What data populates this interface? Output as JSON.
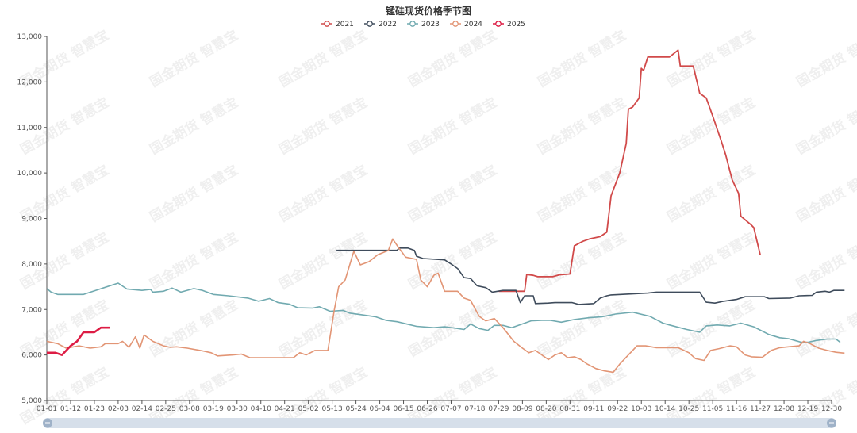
{
  "chart_data": {
    "type": "line",
    "title": "锰硅现货价格季节图",
    "watermark": "国金期货 智慧宝",
    "ylim": [
      5000,
      13000
    ],
    "yticks": [
      "5,000",
      "6,000",
      "7,000",
      "8,000",
      "9,000",
      "10,000",
      "11,000",
      "12,000",
      "13,000"
    ],
    "ytick_values": [
      5000,
      6000,
      7000,
      8000,
      9000,
      10000,
      11000,
      12000,
      13000
    ],
    "xticks": [
      "01-01",
      "01-12",
      "01-23",
      "02-03",
      "02-14",
      "02-25",
      "03-08",
      "03-19",
      "03-30",
      "04-10",
      "04-21",
      "05-02",
      "05-13",
      "05-24",
      "06-04",
      "06-15",
      "06-26",
      "07-07",
      "07-18",
      "07-29",
      "08-09",
      "08-20",
      "08-31",
      "09-11",
      "09-22",
      "10-03",
      "10-14",
      "10-25",
      "11-05",
      "11-16",
      "11-27",
      "12-08",
      "12-19",
      "12-30"
    ],
    "x_unit": "day_of_year",
    "grid": false,
    "legend_position": "top-center",
    "series": [
      {
        "name": "2021",
        "color": "#d14a4a",
        "width": 1.8,
        "points": [
          [
            210,
            7400
          ],
          [
            222,
            7400
          ],
          [
            223,
            7770
          ],
          [
            226,
            7750
          ],
          [
            228,
            7720
          ],
          [
            235,
            7720
          ],
          [
            238,
            7760
          ],
          [
            243,
            7780
          ],
          [
            245,
            8400
          ],
          [
            249,
            8500
          ],
          [
            252,
            8550
          ],
          [
            257,
            8600
          ],
          [
            260,
            8700
          ],
          [
            262,
            9500
          ],
          [
            266,
            10000
          ],
          [
            269,
            10650
          ],
          [
            270,
            11400
          ],
          [
            272,
            11450
          ],
          [
            275,
            11650
          ],
          [
            276,
            12300
          ],
          [
            277,
            12250
          ],
          [
            279,
            12550
          ],
          [
            281,
            12550
          ],
          [
            289,
            12550
          ],
          [
            293,
            12700
          ],
          [
            294,
            12350
          ],
          [
            300,
            12350
          ],
          [
            301,
            12150
          ],
          [
            303,
            11750
          ],
          [
            306,
            11650
          ],
          [
            309,
            11250
          ],
          [
            313,
            10700
          ],
          [
            315,
            10400
          ],
          [
            318,
            9850
          ],
          [
            321,
            9550
          ],
          [
            322,
            9050
          ],
          [
            327,
            8850
          ],
          [
            328,
            8800
          ],
          [
            331,
            8200
          ]
        ]
      },
      {
        "name": "2022",
        "color": "#3f4c5c",
        "width": 1.6,
        "points": [
          [
            135,
            8300
          ],
          [
            163,
            8300
          ],
          [
            164,
            8350
          ],
          [
            168,
            8350
          ],
          [
            171,
            8300
          ],
          [
            172,
            8170
          ],
          [
            175,
            8120
          ],
          [
            185,
            8090
          ],
          [
            188,
            8000
          ],
          [
            191,
            7900
          ],
          [
            194,
            7700
          ],
          [
            197,
            7680
          ],
          [
            200,
            7520
          ],
          [
            204,
            7480
          ],
          [
            207,
            7380
          ],
          [
            212,
            7420
          ],
          [
            218,
            7420
          ],
          [
            220,
            7150
          ],
          [
            222,
            7300
          ],
          [
            226,
            7300
          ],
          [
            227,
            7130
          ],
          [
            233,
            7140
          ],
          [
            236,
            7150
          ],
          [
            244,
            7150
          ],
          [
            247,
            7110
          ],
          [
            254,
            7130
          ],
          [
            257,
            7250
          ],
          [
            260,
            7300
          ],
          [
            262,
            7320
          ],
          [
            279,
            7360
          ],
          [
            283,
            7380
          ],
          [
            303,
            7380
          ],
          [
            306,
            7160
          ],
          [
            310,
            7140
          ],
          [
            314,
            7180
          ],
          [
            320,
            7220
          ],
          [
            324,
            7280
          ],
          [
            333,
            7280
          ],
          [
            335,
            7240
          ],
          [
            345,
            7250
          ],
          [
            349,
            7300
          ],
          [
            355,
            7310
          ],
          [
            357,
            7380
          ],
          [
            361,
            7400
          ],
          [
            363,
            7380
          ],
          [
            365,
            7420
          ],
          [
            370,
            7420
          ]
        ]
      },
      {
        "name": "2023",
        "color": "#71aab0",
        "width": 1.6,
        "points": [
          [
            1,
            7460
          ],
          [
            3,
            7380
          ],
          [
            6,
            7330
          ],
          [
            18,
            7330
          ],
          [
            25,
            7440
          ],
          [
            34,
            7580
          ],
          [
            38,
            7450
          ],
          [
            45,
            7420
          ],
          [
            49,
            7440
          ],
          [
            50,
            7380
          ],
          [
            55,
            7400
          ],
          [
            59,
            7470
          ],
          [
            63,
            7380
          ],
          [
            69,
            7460
          ],
          [
            73,
            7420
          ],
          [
            78,
            7330
          ],
          [
            85,
            7300
          ],
          [
            94,
            7250
          ],
          [
            99,
            7180
          ],
          [
            104,
            7240
          ],
          [
            108,
            7150
          ],
          [
            113,
            7120
          ],
          [
            117,
            7040
          ],
          [
            124,
            7030
          ],
          [
            127,
            7060
          ],
          [
            132,
            6960
          ],
          [
            138,
            6980
          ],
          [
            141,
            6920
          ],
          [
            147,
            6880
          ],
          [
            153,
            6840
          ],
          [
            158,
            6760
          ],
          [
            163,
            6730
          ],
          [
            172,
            6630
          ],
          [
            180,
            6600
          ],
          [
            185,
            6620
          ],
          [
            190,
            6590
          ],
          [
            194,
            6560
          ],
          [
            197,
            6680
          ],
          [
            201,
            6580
          ],
          [
            205,
            6540
          ],
          [
            208,
            6650
          ],
          [
            212,
            6650
          ],
          [
            216,
            6600
          ],
          [
            225,
            6750
          ],
          [
            230,
            6760
          ],
          [
            234,
            6760
          ],
          [
            239,
            6720
          ],
          [
            245,
            6780
          ],
          [
            252,
            6820
          ],
          [
            258,
            6840
          ],
          [
            264,
            6900
          ],
          [
            272,
            6940
          ],
          [
            280,
            6850
          ],
          [
            286,
            6700
          ],
          [
            289,
            6660
          ],
          [
            297,
            6560
          ],
          [
            303,
            6500
          ],
          [
            306,
            6640
          ],
          [
            311,
            6660
          ],
          [
            317,
            6640
          ],
          [
            322,
            6700
          ],
          [
            328,
            6620
          ],
          [
            335,
            6450
          ],
          [
            340,
            6380
          ],
          [
            344,
            6360
          ],
          [
            347,
            6320
          ],
          [
            350,
            6280
          ],
          [
            353,
            6280
          ],
          [
            357,
            6320
          ],
          [
            362,
            6350
          ],
          [
            366,
            6350
          ],
          [
            368,
            6280
          ]
        ]
      },
      {
        "name": "2024",
        "color": "#e29575",
        "width": 1.6,
        "points": [
          [
            1,
            6300
          ],
          [
            6,
            6250
          ],
          [
            10,
            6150
          ],
          [
            16,
            6200
          ],
          [
            21,
            6150
          ],
          [
            26,
            6180
          ],
          [
            28,
            6250
          ],
          [
            34,
            6250
          ],
          [
            36,
            6300
          ],
          [
            39,
            6170
          ],
          [
            42,
            6400
          ],
          [
            44,
            6150
          ],
          [
            46,
            6440
          ],
          [
            50,
            6300
          ],
          [
            55,
            6200
          ],
          [
            58,
            6170
          ],
          [
            61,
            6180
          ],
          [
            66,
            6150
          ],
          [
            72,
            6100
          ],
          [
            77,
            6050
          ],
          [
            80,
            5980
          ],
          [
            87,
            6000
          ],
          [
            91,
            6020
          ],
          [
            95,
            5940
          ],
          [
            115,
            5940
          ],
          [
            118,
            6050
          ],
          [
            121,
            6000
          ],
          [
            125,
            6100
          ],
          [
            131,
            6100
          ],
          [
            134,
            7000
          ],
          [
            136,
            7500
          ],
          [
            139,
            7650
          ],
          [
            143,
            8280
          ],
          [
            146,
            7980
          ],
          [
            150,
            8050
          ],
          [
            154,
            8200
          ],
          [
            159,
            8300
          ],
          [
            161,
            8550
          ],
          [
            164,
            8340
          ],
          [
            167,
            8150
          ],
          [
            172,
            8100
          ],
          [
            174,
            7650
          ],
          [
            177,
            7500
          ],
          [
            180,
            7750
          ],
          [
            182,
            7800
          ],
          [
            185,
            7400
          ],
          [
            191,
            7400
          ],
          [
            194,
            7250
          ],
          [
            197,
            7200
          ],
          [
            201,
            6850
          ],
          [
            204,
            6750
          ],
          [
            208,
            6800
          ],
          [
            212,
            6600
          ],
          [
            217,
            6300
          ],
          [
            221,
            6150
          ],
          [
            224,
            6050
          ],
          [
            227,
            6100
          ],
          [
            230,
            6000
          ],
          [
            233,
            5900
          ],
          [
            236,
            6000
          ],
          [
            239,
            6050
          ],
          [
            242,
            5940
          ],
          [
            245,
            5960
          ],
          [
            248,
            5900
          ],
          [
            251,
            5800
          ],
          [
            255,
            5700
          ],
          [
            259,
            5650
          ],
          [
            263,
            5620
          ],
          [
            266,
            5800
          ],
          [
            270,
            6000
          ],
          [
            274,
            6200
          ],
          [
            278,
            6200
          ],
          [
            283,
            6160
          ],
          [
            293,
            6160
          ],
          [
            298,
            6050
          ],
          [
            301,
            5920
          ],
          [
            305,
            5880
          ],
          [
            308,
            6100
          ],
          [
            312,
            6140
          ],
          [
            317,
            6200
          ],
          [
            320,
            6180
          ],
          [
            324,
            6000
          ],
          [
            327,
            5960
          ],
          [
            332,
            5950
          ],
          [
            336,
            6100
          ],
          [
            340,
            6160
          ],
          [
            344,
            6180
          ],
          [
            349,
            6200
          ],
          [
            351,
            6300
          ],
          [
            354,
            6250
          ],
          [
            358,
            6150
          ],
          [
            362,
            6100
          ],
          [
            366,
            6060
          ],
          [
            370,
            6040
          ]
        ]
      },
      {
        "name": "2025",
        "color": "#dd1c44",
        "width": 2.6,
        "points": [
          [
            1,
            6050
          ],
          [
            5,
            6050
          ],
          [
            8,
            6000
          ],
          [
            12,
            6200
          ],
          [
            15,
            6300
          ],
          [
            18,
            6500
          ],
          [
            23,
            6500
          ],
          [
            26,
            6600
          ],
          [
            30,
            6600
          ]
        ]
      }
    ]
  }
}
